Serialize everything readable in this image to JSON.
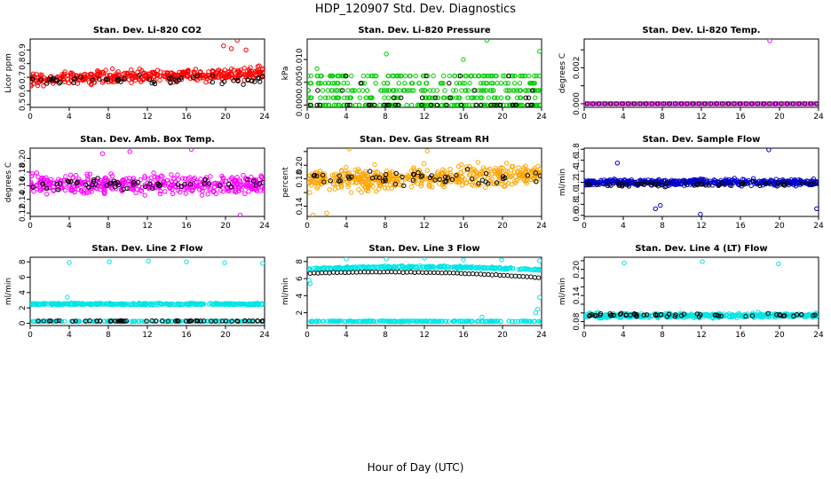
{
  "figure": {
    "title": "HDP_120907  Std. Dev. Diagnostics",
    "xlabel": "Hour of Day (UTC)"
  },
  "chart_data": [
    {
      "type": "scatter",
      "title": "Stan. Dev. Li-820 CO2",
      "ylabel": "Licor ppm",
      "color": "#ff0000",
      "xlim": [
        0,
        24
      ],
      "ylim": [
        0.48,
        0.98
      ],
      "xticks": [
        0,
        4,
        8,
        12,
        16,
        20,
        24
      ],
      "yticks": [
        0.5,
        0.6,
        0.7,
        0.8,
        0.9
      ],
      "ytick_labels": [
        "0.5",
        "0.6",
        "0.7",
        "0.8",
        "0.9"
      ],
      "series": [
        {
          "kind": "band",
          "n": 400,
          "center": 0.685,
          "spread": 0.1,
          "slope": 0.002
        },
        {
          "kind": "black",
          "n": 55,
          "center": 0.68,
          "spread": 0.07
        },
        {
          "kind": "points",
          "values": [
            [
              21.2,
              0.97
            ],
            [
              19.8,
              0.93
            ],
            [
              20.6,
              0.91
            ],
            [
              22.1,
              0.9
            ]
          ]
        }
      ]
    },
    {
      "type": "scatter",
      "title": "Stan. Dev. Li-820 Pressure",
      "ylabel": "kPa",
      "color": "#00cc00",
      "xlim": [
        0,
        24
      ],
      "ylim": [
        -0.0005,
        0.0145
      ],
      "xticks": [
        0,
        4,
        8,
        12,
        16,
        20,
        24
      ],
      "yticks": [
        0,
        0.005,
        0.01
      ],
      "ytick_labels": [
        "0.000",
        "0.005",
        "0.010"
      ],
      "series": [
        {
          "kind": "levels",
          "n": 420,
          "levels": [
            0,
            0.0016,
            0.0032,
            0.0048,
            0.0064
          ],
          "weights": [
            0.32,
            0.17,
            0.17,
            0.17,
            0.17
          ]
        },
        {
          "kind": "black-levels",
          "n": 50,
          "levels": [
            0,
            0.0016,
            0.0032,
            0.0048,
            0.0064
          ],
          "weights": [
            0.5,
            0.12,
            0.13,
            0.13,
            0.12
          ]
        },
        {
          "kind": "points",
          "values": [
            [
              18.4,
              0.0142
            ],
            [
              23.8,
              0.0118
            ],
            [
              8.1,
              0.0112
            ],
            [
              16.0,
              0.01
            ],
            [
              1.0,
              0.008
            ]
          ]
        }
      ]
    },
    {
      "type": "scatter",
      "title": "Stan. Dev. Li-820 Temp.",
      "ylabel": "degrees C",
      "color": "#ff00ff",
      "xlim": [
        0,
        24
      ],
      "ylim": [
        -0.0002,
        0.0036
      ],
      "xticks": [
        0,
        4,
        8,
        12,
        16,
        20,
        24
      ],
      "yticks": [
        0,
        0.001,
        0.002,
        0.003
      ],
      "ytick_labels": [
        "0.000",
        "",
        "0.002",
        ""
      ],
      "series": [
        {
          "kind": "flat",
          "n": 140,
          "value": 0
        },
        {
          "kind": "black-flat",
          "n": 40,
          "value": 0
        },
        {
          "kind": "points",
          "values": [
            [
              19.0,
              0.0035
            ]
          ]
        }
      ]
    },
    {
      "type": "scatter",
      "title": "Stan. Dev. Amb. Box Temp.",
      "ylabel": "degrees C",
      "color": "#ff00ff",
      "xlim": [
        0,
        24
      ],
      "ylim": [
        0.115,
        0.215
      ],
      "xticks": [
        0,
        4,
        8,
        12,
        16,
        20,
        24
      ],
      "yticks": [
        0.12,
        0.14,
        0.16,
        0.18,
        0.2
      ],
      "ytick_labels": [
        "0.12",
        "0.14",
        "0.16",
        "0.18",
        "0.20"
      ],
      "series": [
        {
          "kind": "band",
          "n": 420,
          "center": 0.162,
          "spread": 0.03,
          "slope": 0
        },
        {
          "kind": "black",
          "n": 55,
          "center": 0.163,
          "spread": 0.02
        },
        {
          "kind": "points",
          "values": [
            [
              16.5,
              0.213
            ],
            [
              10.2,
              0.21
            ],
            [
              7.4,
              0.207
            ],
            [
              21.5,
              0.117
            ]
          ]
        }
      ]
    },
    {
      "type": "scatter",
      "title": "Stan. Dev. Gas Stream RH",
      "ylabel": "percent",
      "color": "#ffa500",
      "xlim": [
        0,
        24
      ],
      "ylim": [
        0.125,
        0.225
      ],
      "xticks": [
        0,
        4,
        8,
        12,
        16,
        20,
        24
      ],
      "yticks": [
        0.14,
        0.16,
        0.18,
        0.2,
        0.22
      ],
      "ytick_labels": [
        "0.14",
        "",
        "0.18",
        "0.20",
        ""
      ],
      "series": [
        {
          "kind": "band",
          "n": 480,
          "center": 0.177,
          "spread": 0.032,
          "slope": 0.0004
        },
        {
          "kind": "black",
          "n": 55,
          "center": 0.18,
          "spread": 0.022
        },
        {
          "kind": "points",
          "values": [
            [
              4.3,
              0.224
            ],
            [
              12.3,
              0.221
            ],
            [
              0.6,
              0.127
            ],
            [
              2.0,
              0.13
            ]
          ]
        }
      ]
    },
    {
      "type": "scatter",
      "title": "Stan. Dev. Sample Flow",
      "ylabel": "ml/min",
      "color": "#0000cc",
      "xlim": [
        0,
        24
      ],
      "ylim": [
        0.58,
        1.82
      ],
      "xticks": [
        0,
        4,
        8,
        12,
        16,
        20,
        24
      ],
      "yticks": [
        0.6,
        0.8,
        1,
        1.2,
        1.4,
        1.6,
        1.8
      ],
      "ytick_labels": [
        "0.6",
        "0.8",
        "1.0",
        "1.2",
        "1.4",
        "1.6",
        "1.8"
      ],
      "series": [
        {
          "kind": "band",
          "n": 480,
          "center": 1.2,
          "spread": 0.12,
          "slope": 0
        },
        {
          "kind": "black",
          "n": 55,
          "center": 1.16,
          "spread": 0.09
        },
        {
          "kind": "points",
          "values": [
            [
              18.9,
              1.79
            ],
            [
              7.8,
              0.78
            ],
            [
              7.3,
              0.72
            ],
            [
              23.8,
              0.72
            ],
            [
              11.9,
              0.62
            ],
            [
              3.4,
              1.55
            ]
          ]
        }
      ]
    },
    {
      "type": "scatter",
      "title": "Stan. Dev. Line 2 Flow",
      "ylabel": "ml/min",
      "color": "#00e5e5",
      "xlim": [
        0,
        24
      ],
      "ylim": [
        -0.3,
        8.6
      ],
      "xticks": [
        0,
        4,
        8,
        12,
        16,
        20,
        24
      ],
      "yticks": [
        0,
        2,
        4,
        6,
        8
      ],
      "ytick_labels": [
        "0",
        "2",
        "4",
        "6",
        "8"
      ],
      "series": [
        {
          "kind": "band",
          "n": 380,
          "center": 2.5,
          "spread": 0.25,
          "slope": 0
        },
        {
          "kind": "band",
          "n": 160,
          "center": 0.25,
          "spread": 0.1,
          "slope": 0
        },
        {
          "kind": "black",
          "n": 60,
          "center": 0.3,
          "spread": 0.08
        },
        {
          "kind": "points",
          "values": [
            [
              4.0,
              7.9
            ],
            [
              8.1,
              8.0
            ],
            [
              12.1,
              8.1
            ],
            [
              16.0,
              8.0
            ],
            [
              19.9,
              7.9
            ],
            [
              23.8,
              7.8
            ],
            [
              3.8,
              3.4
            ]
          ]
        }
      ]
    },
    {
      "type": "scatter",
      "title": "Stan. Dev. Line 3 Flow",
      "ylabel": "ml/min",
      "color": "#00e5e5",
      "xlim": [
        0,
        24
      ],
      "ylim": [
        0.5,
        8.5
      ],
      "xticks": [
        0,
        4,
        8,
        12,
        16,
        20,
        24
      ],
      "yticks": [
        2,
        4,
        6,
        8
      ],
      "ytick_labels": [
        "2",
        "4",
        "6",
        "8"
      ],
      "series": [
        {
          "kind": "arc",
          "n": 260,
          "start": 7.1,
          "peak": 7.7,
          "end": 7.0,
          "spread": 0.28
        },
        {
          "kind": "band",
          "n": 220,
          "center": 1.0,
          "spread": 0.1,
          "slope": 0
        },
        {
          "kind": "black-arc",
          "n": 60,
          "start": 6.6,
          "peak": 7.1,
          "end": 6.1,
          "spread": 0.08
        },
        {
          "kind": "points",
          "values": [
            [
              0.3,
              5.4
            ],
            [
              0.2,
              5.8
            ],
            [
              4.0,
              8.3
            ],
            [
              8.1,
              8.3
            ],
            [
              12.0,
              8.4
            ],
            [
              16.0,
              8.2
            ],
            [
              19.9,
              8.2
            ],
            [
              23.8,
              8.1
            ],
            [
              17.9,
              1.5
            ],
            [
              23.6,
              2.4
            ],
            [
              23.8,
              3.8
            ],
            [
              23.4,
              2.0
            ]
          ]
        }
      ]
    },
    {
      "type": "scatter",
      "title": "Stan. Dev. Line 4 (LT) Flow",
      "ylabel": "ml/min",
      "color": "#00e5e5",
      "xlim": [
        0,
        24
      ],
      "ylim": [
        0.071,
        0.228
      ],
      "xticks": [
        0,
        4,
        8,
        12,
        16,
        20,
        24
      ],
      "yticks": [
        0.08,
        0.1,
        0.12,
        0.14,
        0.16,
        0.18,
        0.2,
        0.22
      ],
      "ytick_labels": [
        "0.08",
        "",
        "",
        "0.14",
        "",
        "",
        "0.20",
        ""
      ],
      "series": [
        {
          "kind": "band",
          "n": 420,
          "center": 0.094,
          "spread": 0.011,
          "slope": 0
        },
        {
          "kind": "black",
          "n": 55,
          "center": 0.095,
          "spread": 0.008
        },
        {
          "kind": "points",
          "values": [
            [
              4.1,
              0.215
            ],
            [
              12.1,
              0.218
            ],
            [
              19.9,
              0.213
            ]
          ]
        }
      ]
    }
  ]
}
